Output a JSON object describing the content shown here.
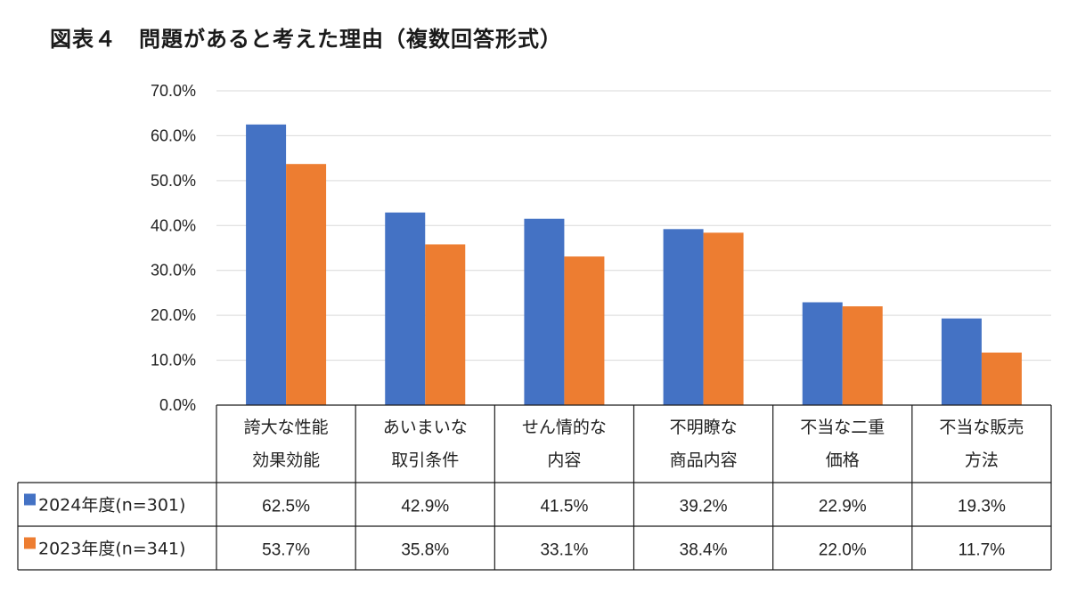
{
  "title": "図表４　問題があると考えた理由（複数回答形式）",
  "chart_data": {
    "type": "bar",
    "title": "図表４　問題があると考えた理由（複数回答形式）",
    "categories": [
      [
        "誇大な性能",
        "効果効能"
      ],
      [
        "あいまいな",
        "取引条件"
      ],
      [
        "せん情的な",
        "内容"
      ],
      [
        "不明瞭な",
        "商品内容"
      ],
      [
        "不当な二重",
        "価格"
      ],
      [
        "不当な販売",
        "方法"
      ]
    ],
    "series": [
      {
        "name": "2024年度(n=301)",
        "color": "#4472c4",
        "values": [
          62.5,
          42.9,
          41.5,
          39.2,
          22.9,
          19.3
        ],
        "labels": [
          "62.5%",
          "42.9%",
          "41.5%",
          "39.2%",
          "22.9%",
          "19.3%"
        ]
      },
      {
        "name": "2023年度(n=341)",
        "color": "#ed7d31",
        "values": [
          53.7,
          35.8,
          33.1,
          38.4,
          22.0,
          11.7
        ],
        "labels": [
          "53.7%",
          "35.8%",
          "33.1%",
          "38.4%",
          "22.0%",
          "11.7%"
        ]
      }
    ],
    "yticks": [
      "0.0%",
      "10.0%",
      "20.0%",
      "30.0%",
      "40.0%",
      "50.0%",
      "60.0%",
      "70.0%"
    ],
    "ylim": [
      0,
      70
    ],
    "grid": true,
    "legend": "data-table",
    "xlabel": "",
    "ylabel": ""
  }
}
